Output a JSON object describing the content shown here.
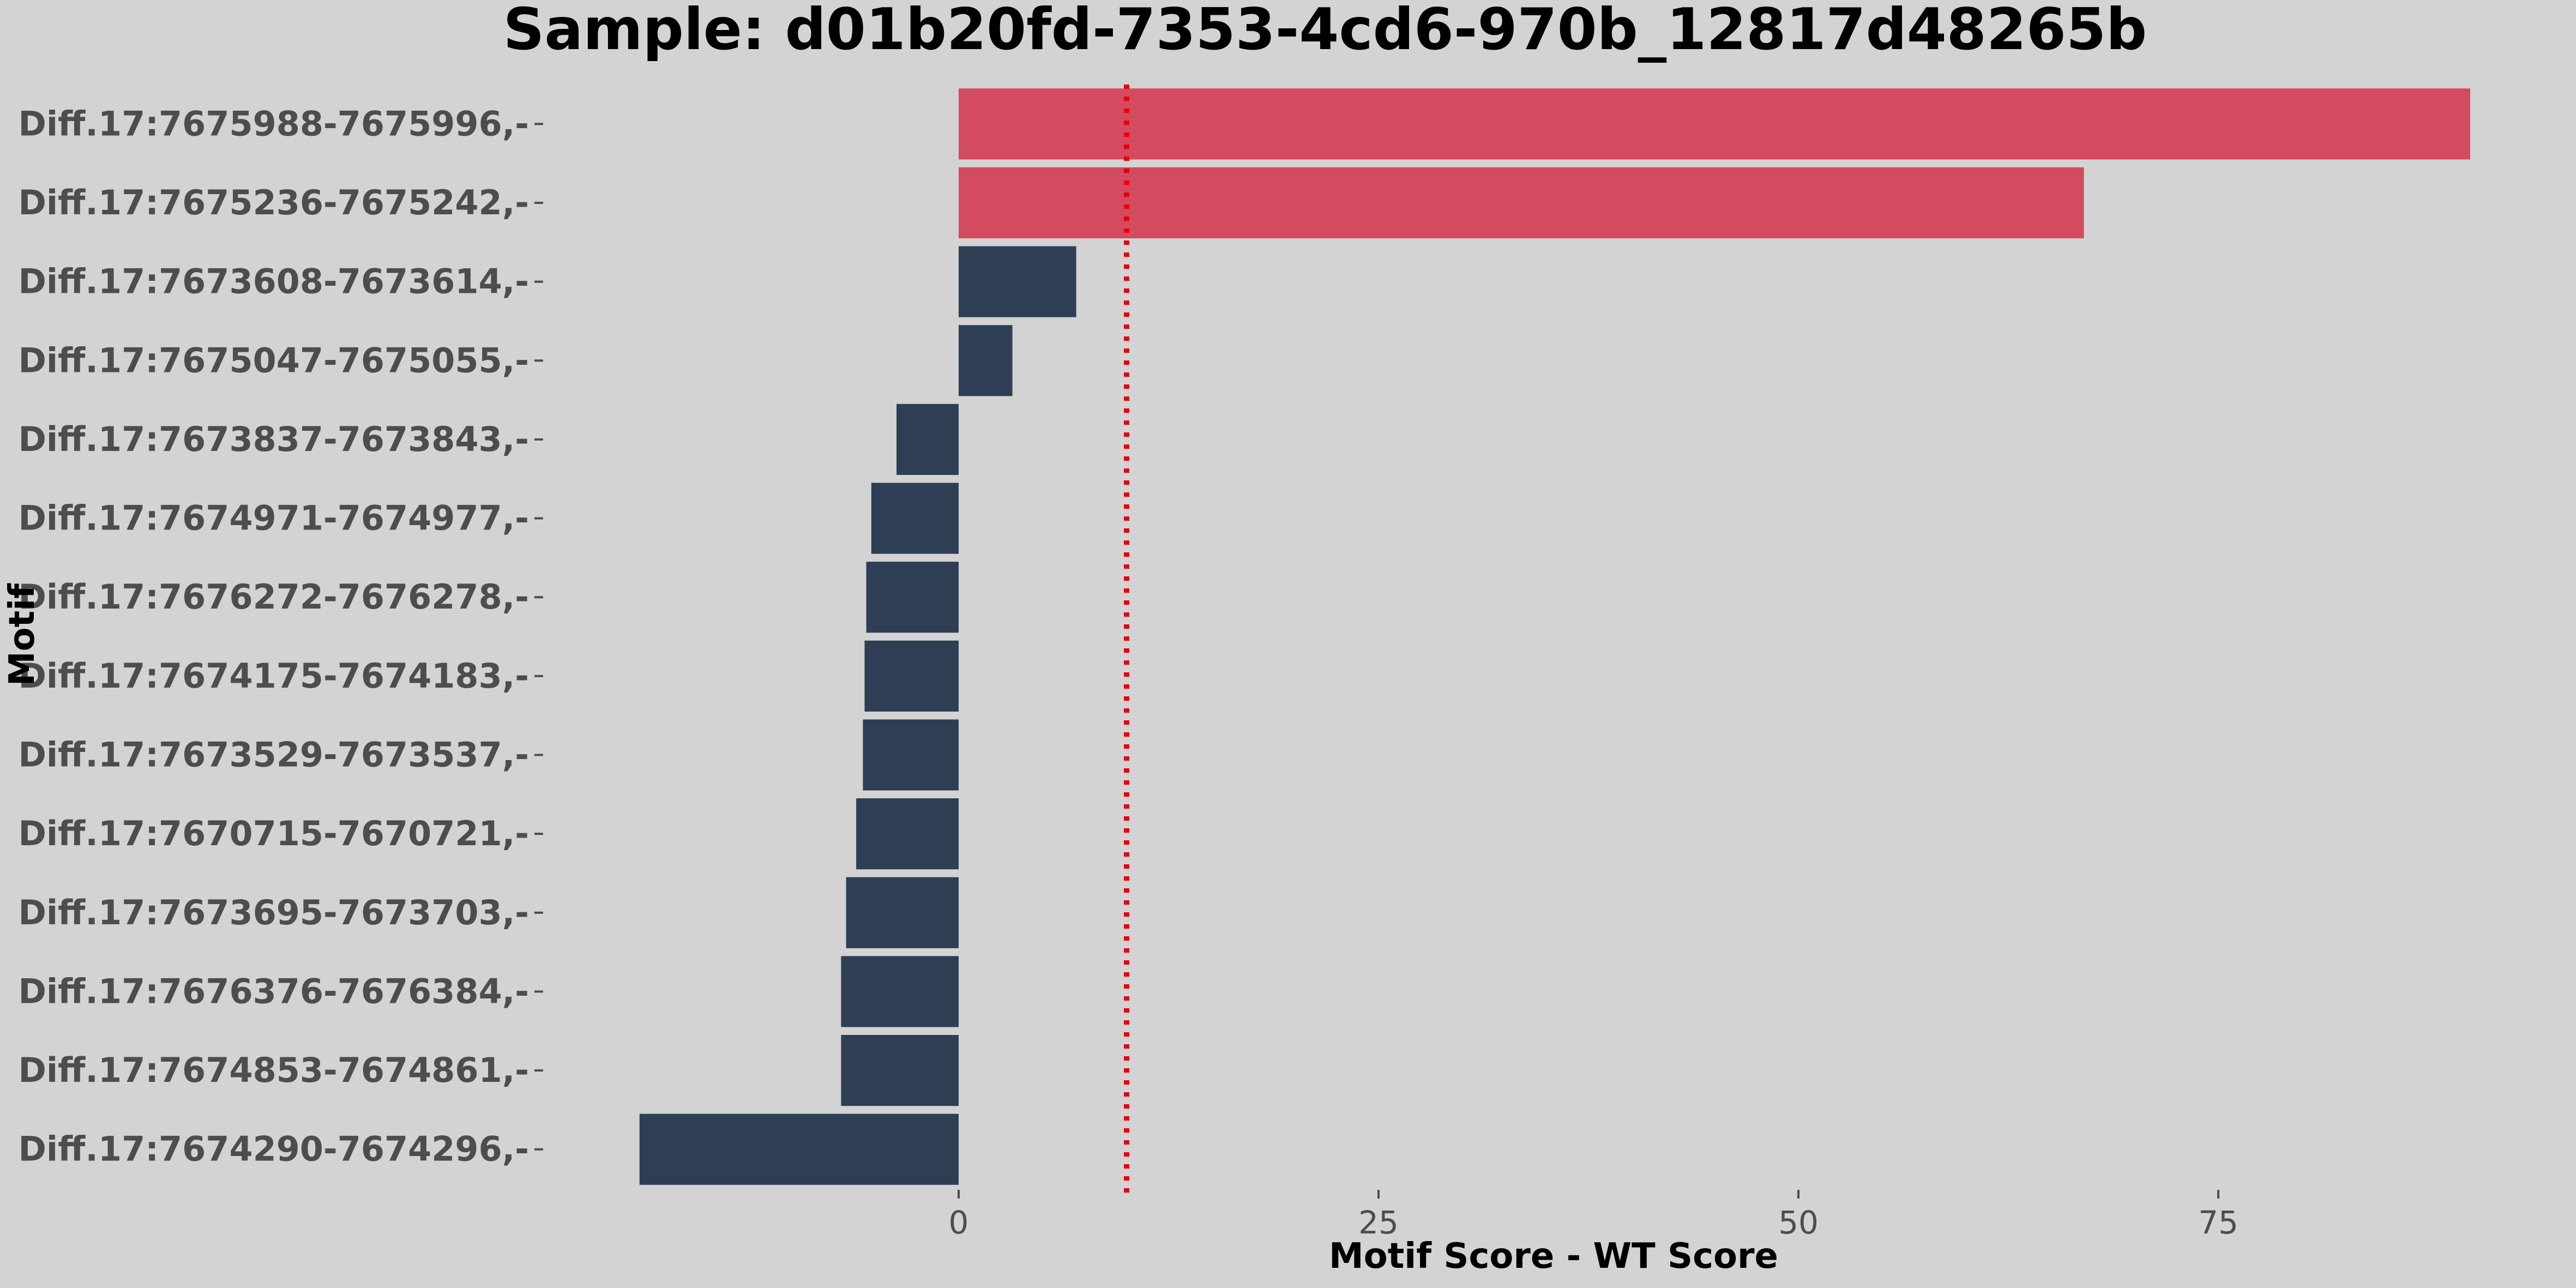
{
  "chart_data": {
    "type": "bar",
    "orientation": "horizontal",
    "title": "Sample: d01b20fd-7353-4cd6-970b_12817d48265b",
    "xlabel": "Motif Score - WT Score",
    "ylabel": "Motif",
    "xlim": [
      -22,
      92
    ],
    "xticks": [
      0,
      25,
      50,
      75
    ],
    "threshold": 10,
    "grid": false,
    "colors": {
      "background": "#d3d3d3",
      "above_threshold": "#d44a5e",
      "below_threshold": "#2d3e55",
      "threshold_line": "#e8000b",
      "tick_text": "#4d4d4d"
    },
    "categories": [
      "Diff.17:7675988-7675996,-",
      "Diff.17:7675236-7675242,-",
      "Diff.17:7673608-7673614,-",
      "Diff.17:7675047-7675055,-",
      "Diff.17:7673837-7673843,-",
      "Diff.17:7674971-7674977,-",
      "Diff.17:7676272-7676278,-",
      "Diff.17:7674175-7674183,-",
      "Diff.17:7673529-7673537,-",
      "Diff.17:7670715-7670721,-",
      "Diff.17:7673695-7673703,-",
      "Diff.17:7676376-7676384,-",
      "Diff.17:7674853-7674861,-",
      "Diff.17:7674290-7674296,-"
    ],
    "values": [
      90,
      67,
      7,
      3.2,
      -3.7,
      -5.2,
      -5.5,
      -5.6,
      -5.7,
      -6.1,
      -6.7,
      -7,
      -7,
      -19
    ]
  }
}
